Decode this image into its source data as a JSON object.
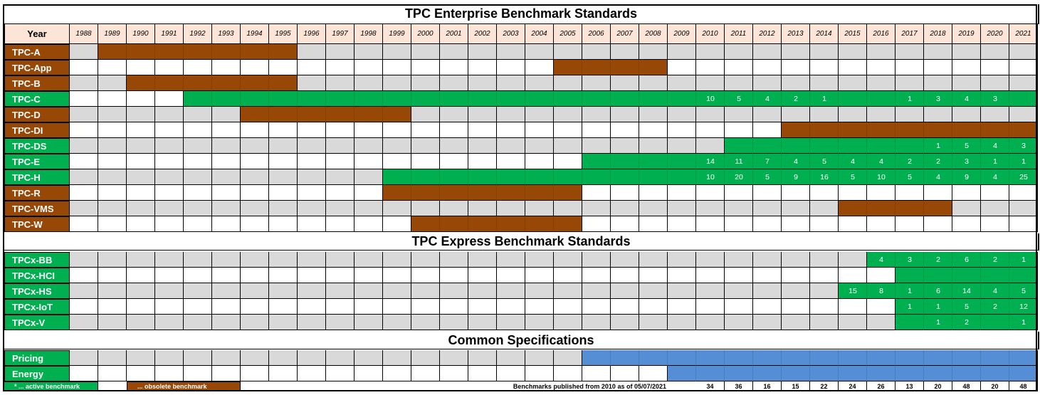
{
  "chart_data": {
    "type": "table",
    "title": "TPC Enterprise  Benchmark Standards",
    "year_header": "Year",
    "years": [
      "1988",
      "1989",
      "1990",
      "1991",
      "1992",
      "1993",
      "1994",
      "1995",
      "1996",
      "1997",
      "1998",
      "1999",
      "2000",
      "2001",
      "2002",
      "2003",
      "2004",
      "2005",
      "2006",
      "2007",
      "2008",
      "2009",
      "2010",
      "2011",
      "2012",
      "2013",
      "2014",
      "2015",
      "2016",
      "2017",
      "2018",
      "2019",
      "2020",
      "2021"
    ],
    "colors": {
      "active": "#00b050",
      "obsolete": "#974806",
      "common": "#558ed5",
      "grey": "#d9d9d9",
      "white": "#ffffff",
      "year_bg": "#fce4d6"
    },
    "sections": [
      {
        "title": "TPC Enterprise  Benchmark Standards",
        "rows": [
          {
            "name": "TPC-A",
            "status": "obsolete",
            "start": 1989,
            "end": 1995,
            "counts": {}
          },
          {
            "name": "TPC-App",
            "status": "obsolete",
            "start": 2005,
            "end": 2008,
            "counts": {}
          },
          {
            "name": "TPC-B",
            "status": "obsolete",
            "start": 1990,
            "end": 1995,
            "counts": {}
          },
          {
            "name": "TPC-C",
            "status": "active",
            "start": 1992,
            "end": 2021,
            "counts": {
              "2010": "10",
              "2011": "5",
              "2012": "4",
              "2013": "2",
              "2014": "1",
              "2017": "1",
              "2018": "3",
              "2019": "4",
              "2020": "3"
            }
          },
          {
            "name": "TPC-D",
            "status": "obsolete",
            "start": 1994,
            "end": 1999,
            "counts": {}
          },
          {
            "name": "TPC-DI",
            "status": "obsolete",
            "start": 2013,
            "end": 2021,
            "counts": {}
          },
          {
            "name": "TPC-DS",
            "status": "active",
            "start": 2011,
            "end": 2021,
            "counts": {
              "2018": "1",
              "2019": "5",
              "2020": "4",
              "2021": "3"
            }
          },
          {
            "name": "TPC-E",
            "status": "active",
            "start": 2006,
            "end": 2021,
            "counts": {
              "2010": "14",
              "2011": "11",
              "2012": "7",
              "2013": "4",
              "2014": "5",
              "2015": "4",
              "2016": "4",
              "2017": "2",
              "2018": "2",
              "2019": "3",
              "2020": "1",
              "2021": "1"
            }
          },
          {
            "name": "TPC-H",
            "status": "active",
            "start": 1999,
            "end": 2021,
            "counts": {
              "2010": "10",
              "2011": "20",
              "2012": "5",
              "2013": "9",
              "2014": "16",
              "2015": "5",
              "2016": "10",
              "2017": "5",
              "2018": "4",
              "2019": "9",
              "2020": "4",
              "2021": "25"
            }
          },
          {
            "name": "TPC-R",
            "status": "obsolete",
            "start": 1999,
            "end": 2005,
            "counts": {}
          },
          {
            "name": "TPC-VMS",
            "status": "obsolete",
            "start": 2015,
            "end": 2018,
            "counts": {}
          },
          {
            "name": "TPC-W",
            "status": "obsolete",
            "start": 2000,
            "end": 2005,
            "counts": {}
          }
        ]
      },
      {
        "title": "TPC Express  Benchmark Standards",
        "rows": [
          {
            "name": "TPCx-BB",
            "status": "active",
            "start": 2016,
            "end": 2021,
            "counts": {
              "2016": "4",
              "2017": "3",
              "2018": "2",
              "2019": "6",
              "2020": "2",
              "2021": "1"
            }
          },
          {
            "name": "TPCx-HCI",
            "status": "active",
            "start": 2017,
            "end": 2021,
            "counts": {}
          },
          {
            "name": "TPCx-HS",
            "status": "active",
            "start": 2015,
            "end": 2021,
            "counts": {
              "2015": "15",
              "2016": "8",
              "2017": "1",
              "2018": "6",
              "2019": "14",
              "2020": "4",
              "2021": "5"
            }
          },
          {
            "name": "TPCx-IoT",
            "status": "active",
            "start": 2017,
            "end": 2021,
            "counts": {
              "2017": "1",
              "2018": "1",
              "2019": "5",
              "2020": "2",
              "2021": "12"
            }
          },
          {
            "name": "TPCx-V",
            "status": "active",
            "start": 2017,
            "end": 2021,
            "counts": {
              "2018": "1",
              "2019": "2",
              "2021": "1"
            }
          }
        ]
      },
      {
        "title": "Common Specifications",
        "rows": [
          {
            "name": "Pricing",
            "status": "common",
            "start": 2006,
            "end": 2021,
            "counts": {}
          },
          {
            "name": "Energy",
            "status": "common",
            "start": 2009,
            "end": 2021,
            "counts": {}
          }
        ]
      }
    ],
    "footer": {
      "active_label": "* ... active benchmark",
      "obsolete_label": "... obsolete benchmark",
      "published_label": "Benchmarks published from 2010 as of 05/07/2021",
      "totals": {
        "2010": "34",
        "2011": "36",
        "2012": "16",
        "2013": "15",
        "2014": "22",
        "2015": "24",
        "2016": "26",
        "2017": "13",
        "2018": "20",
        "2019": "48",
        "2020": "20",
        "2021": "48"
      }
    }
  }
}
